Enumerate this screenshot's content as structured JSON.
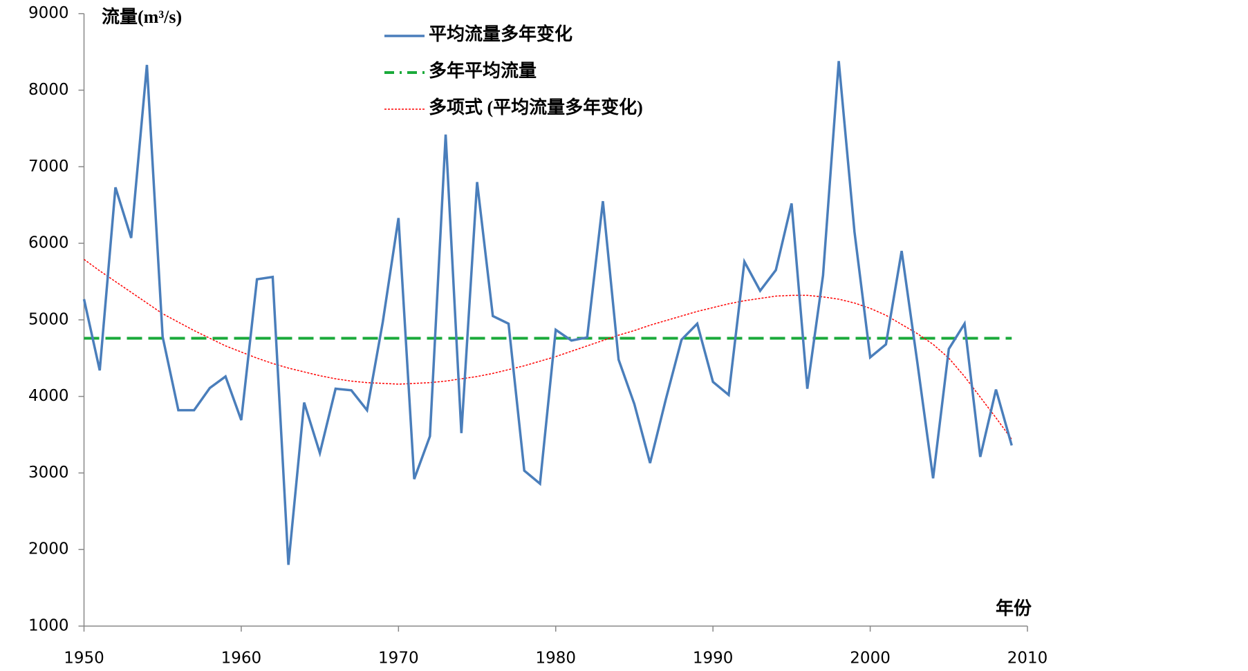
{
  "chart_data": {
    "type": "line",
    "ylabel": "流量(m³/s)",
    "xlabel": "年份",
    "x": [
      1950,
      1951,
      1952,
      1953,
      1954,
      1955,
      1956,
      1957,
      1958,
      1959,
      1960,
      1961,
      1962,
      1963,
      1964,
      1965,
      1966,
      1967,
      1968,
      1969,
      1970,
      1971,
      1972,
      1973,
      1974,
      1975,
      1976,
      1977,
      1978,
      1979,
      1980,
      1981,
      1982,
      1983,
      1984,
      1985,
      1986,
      1987,
      1988,
      1989,
      1990,
      1991,
      1992,
      1993,
      1994,
      1995,
      1996,
      1997,
      1998,
      1999,
      2000,
      2001,
      2002,
      2003,
      2004,
      2005,
      2006,
      2007,
      2008,
      2009
    ],
    "series": [
      {
        "name": "平均流量多年变化",
        "color": "#4a7ebb",
        "line_style": "solid",
        "values": [
          5270,
          4340,
          6730,
          6070,
          8330,
          4780,
          3820,
          3820,
          4110,
          4260,
          3690,
          5530,
          5560,
          1800,
          3920,
          3260,
          4100,
          4080,
          3820,
          4970,
          6330,
          2920,
          3480,
          7420,
          3520,
          6800,
          5050,
          4950,
          3030,
          2860,
          4870,
          4730,
          4770,
          6550,
          4480,
          3900,
          3130,
          3960,
          4740,
          4950,
          4190,
          4020,
          5760,
          5380,
          5650,
          6520,
          4100,
          5580,
          8380,
          6150,
          4510,
          4680,
          5900,
          4440,
          2930,
          4620,
          4950,
          3210,
          4090,
          3360
        ]
      },
      {
        "name": "多年平均流量",
        "color": "#1aaa3a",
        "line_style": "dashed",
        "values": [
          4760,
          4760,
          4760,
          4760,
          4760,
          4760,
          4760,
          4760,
          4760,
          4760,
          4760,
          4760,
          4760,
          4760,
          4760,
          4760,
          4760,
          4760,
          4760,
          4760,
          4760,
          4760,
          4760,
          4760,
          4760,
          4760,
          4760,
          4760,
          4760,
          4760,
          4760,
          4760,
          4760,
          4760,
          4760,
          4760,
          4760,
          4760,
          4760,
          4760,
          4760,
          4760,
          4760,
          4760,
          4760,
          4760,
          4760,
          4760,
          4760,
          4760,
          4760,
          4760,
          4760,
          4760,
          4760,
          4760,
          4760,
          4760,
          4760,
          4760
        ]
      },
      {
        "name": "多项式 (平均流量多年变化)",
        "color": "#ff0000",
        "line_style": "dotted",
        "values": [
          5790,
          5640,
          5500,
          5360,
          5220,
          5080,
          4970,
          4860,
          4760,
          4660,
          4580,
          4500,
          4430,
          4370,
          4320,
          4270,
          4230,
          4200,
          4180,
          4170,
          4160,
          4170,
          4180,
          4200,
          4230,
          4260,
          4300,
          4350,
          4400,
          4460,
          4520,
          4590,
          4660,
          4730,
          4800,
          4860,
          4930,
          4990,
          5050,
          5110,
          5160,
          5210,
          5250,
          5280,
          5310,
          5320,
          5320,
          5300,
          5270,
          5220,
          5150,
          5060,
          4940,
          4820,
          4680,
          4500,
          4260,
          3990,
          3720,
          3440
        ]
      }
    ],
    "xlim": [
      1950,
      2010
    ],
    "xticks": [
      1950,
      1960,
      1970,
      1980,
      1990,
      2000,
      2010
    ],
    "ylim": [
      1000,
      9000
    ],
    "yticks": [
      1000,
      2000,
      3000,
      4000,
      5000,
      6000,
      7000,
      8000,
      9000
    ],
    "grid": false,
    "legend": "top"
  }
}
